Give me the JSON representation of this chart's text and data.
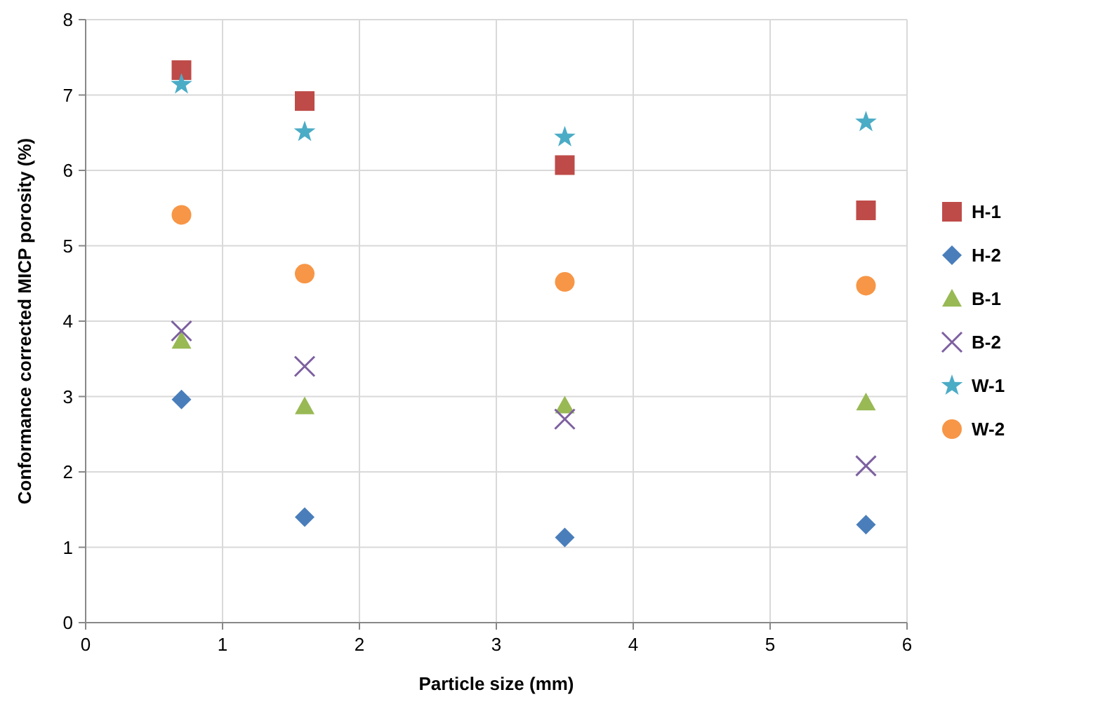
{
  "chart_data": {
    "type": "scatter",
    "xlabel": "Particle size (mm)",
    "ylabel": "Conformance corrected MICP porosity (%)",
    "xlim": [
      0,
      6
    ],
    "xticks": [
      0,
      1,
      2,
      3,
      4,
      5,
      6
    ],
    "ylim": [
      0,
      8
    ],
    "yticks": [
      0,
      1,
      2,
      3,
      4,
      5,
      6,
      7,
      8
    ],
    "grid": true,
    "legend": "right",
    "x": [
      0.7,
      1.6,
      3.5,
      5.7
    ],
    "series": [
      {
        "name": "H-1",
        "color": "#be4b48",
        "marker": "square",
        "values": [
          7.33,
          6.92,
          6.07,
          5.47
        ]
      },
      {
        "name": "H-2",
        "color": "#4a7ebb",
        "marker": "diamond",
        "values": [
          2.96,
          1.4,
          1.13,
          1.3
        ]
      },
      {
        "name": "B-1",
        "color": "#98b954",
        "marker": "triangle",
        "values": [
          3.74,
          2.87,
          2.88,
          2.92
        ]
      },
      {
        "name": "B-2",
        "color": "#7d60a0",
        "marker": "cross",
        "values": [
          3.87,
          3.4,
          2.7,
          2.08
        ]
      },
      {
        "name": "W-1",
        "color": "#4bacc6",
        "marker": "star",
        "values": [
          7.14,
          6.51,
          6.44,
          6.64
        ]
      },
      {
        "name": "W-2",
        "color": "#f79646",
        "marker": "circle",
        "values": [
          5.41,
          4.63,
          4.52,
          4.47
        ]
      }
    ]
  }
}
